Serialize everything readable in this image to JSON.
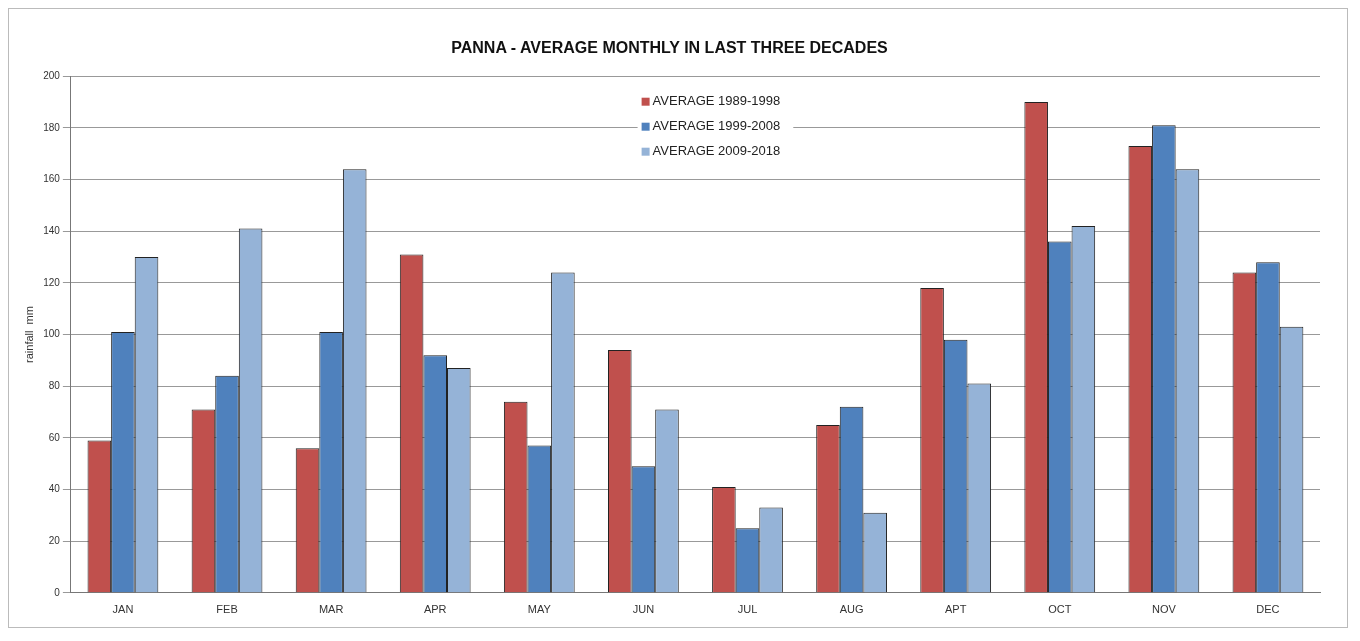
{
  "chart_data": {
    "type": "bar",
    "title": "PANNA - AVERAGE MONTHLY IN LAST THREE DECADES",
    "ylabel": "rainfall  mm",
    "categories": [
      "JAN",
      "FEB",
      "MAR",
      "APR",
      "MAY",
      "JUN",
      "JUL",
      "AUG",
      "APT",
      "OCT",
      "NOV",
      "DEC"
    ],
    "series": [
      {
        "name": "AVERAGE 1989-1998",
        "color": "#c0504d",
        "values": [
          59,
          71,
          56,
          131,
          74,
          94,
          41,
          65,
          118,
          190,
          173,
          124
        ]
      },
      {
        "name": "AVERAGE 1999-2008",
        "color": "#4f81bd",
        "values": [
          101,
          84,
          101,
          92,
          57,
          49,
          25,
          72,
          98,
          136,
          181,
          128
        ]
      },
      {
        "name": "AVERAGE 2009-2018",
        "color": "#95b3d7",
        "values": [
          130,
          141,
          164,
          87,
          124,
          71,
          33,
          31,
          81,
          142,
          164,
          103
        ]
      }
    ],
    "ylim": [
      0,
      200
    ],
    "yticks": [
      0,
      20,
      40,
      60,
      80,
      100,
      120,
      140,
      160,
      180,
      200
    ],
    "grid": "y",
    "legend": "top"
  }
}
